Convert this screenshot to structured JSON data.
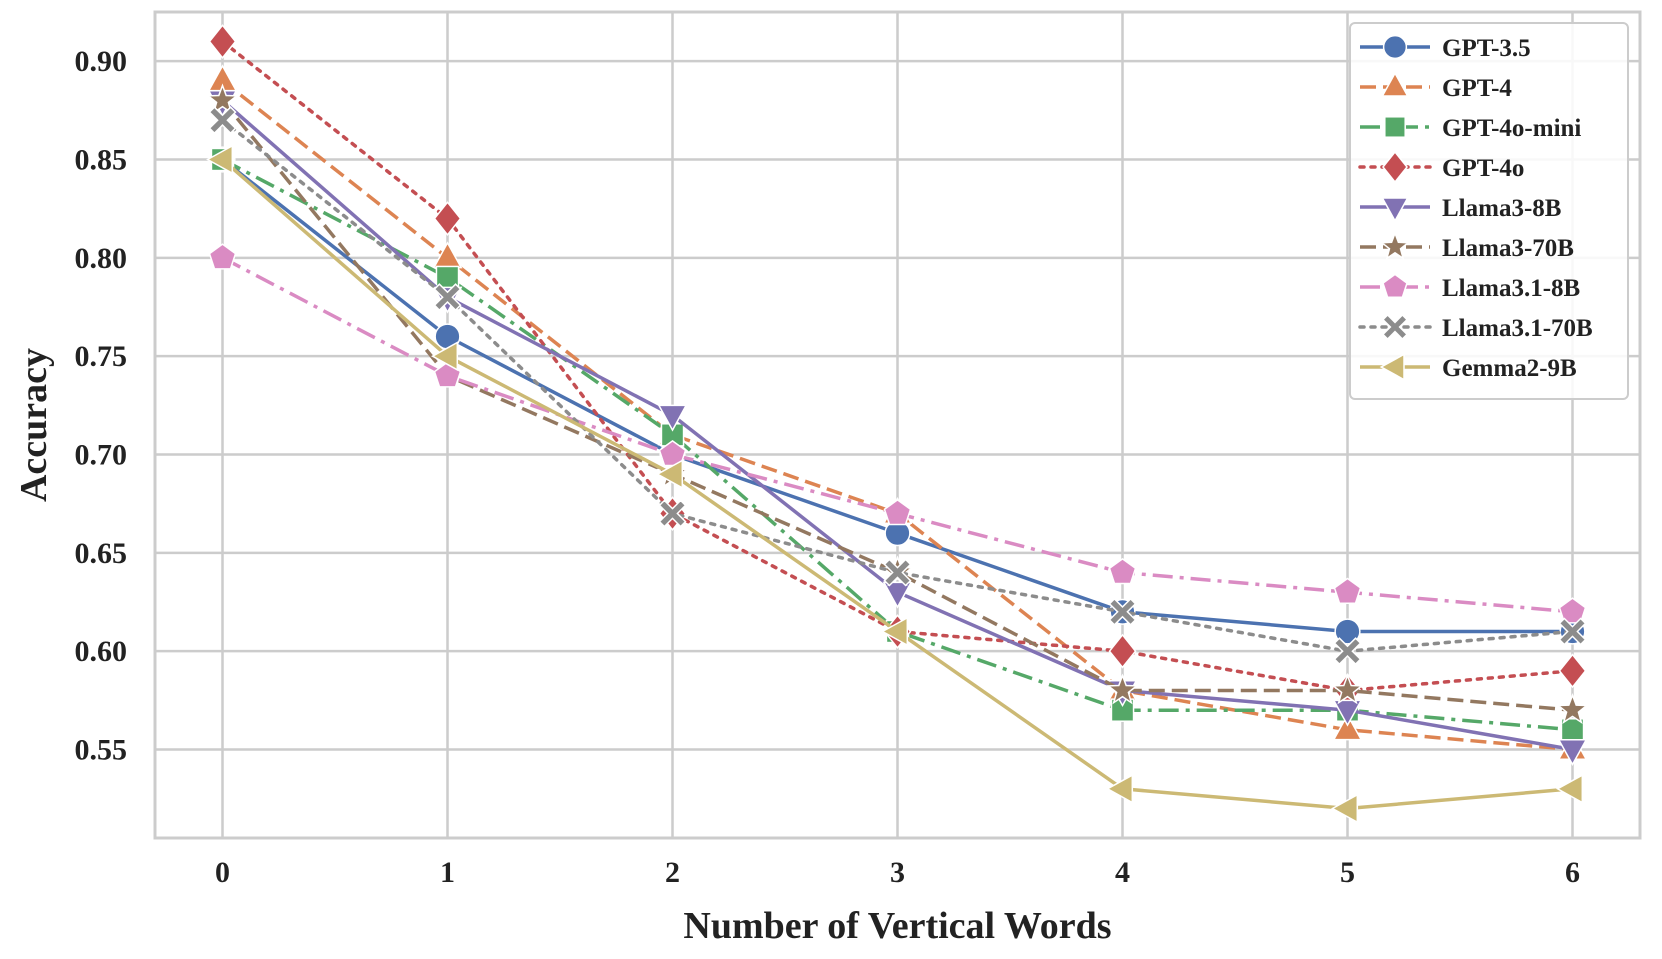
{
  "chart_data": {
    "type": "line",
    "xlabel": "Number of Vertical Words",
    "ylabel": "Accuracy",
    "x": [
      0,
      1,
      2,
      3,
      4,
      5,
      6
    ],
    "x_tick_labels": [
      "0",
      "1",
      "2",
      "3",
      "4",
      "5",
      "6"
    ],
    "xlim": [
      -0.3,
      6.3
    ],
    "y_ticks": [
      0.55,
      0.6,
      0.65,
      0.7,
      0.75,
      0.8,
      0.85,
      0.9
    ],
    "y_tick_labels": [
      "0.55",
      "0.60",
      "0.65",
      "0.70",
      "0.75",
      "0.80",
      "0.85",
      "0.90"
    ],
    "ylim": [
      0.505,
      0.925
    ],
    "grid": true,
    "legend_position": "top-right",
    "series": [
      {
        "name": "GPT-3.5",
        "color": "#4c72b0",
        "linestyle": "solid",
        "marker": "circle",
        "values": [
          0.85,
          0.76,
          0.7,
          0.66,
          0.62,
          0.61,
          0.61
        ]
      },
      {
        "name": "GPT-4",
        "color": "#dd8452",
        "linestyle": "dashed",
        "marker": "triangle-up",
        "values": [
          0.89,
          0.8,
          0.71,
          0.67,
          0.58,
          0.56,
          0.55
        ]
      },
      {
        "name": "GPT-4o-mini",
        "color": "#55a868",
        "linestyle": "dashdot",
        "marker": "square",
        "values": [
          0.85,
          0.79,
          0.71,
          0.61,
          0.57,
          0.57,
          0.56
        ]
      },
      {
        "name": "GPT-4o",
        "color": "#c44e52",
        "linestyle": "dotted",
        "marker": "diamond",
        "values": [
          0.91,
          0.82,
          0.67,
          0.61,
          0.6,
          0.58,
          0.59
        ]
      },
      {
        "name": "Llama3-8B",
        "color": "#8172b3",
        "linestyle": "solid",
        "marker": "triangle-down",
        "values": [
          0.88,
          0.78,
          0.72,
          0.63,
          0.58,
          0.57,
          0.55
        ]
      },
      {
        "name": "Llama3-70B",
        "color": "#937860",
        "linestyle": "dashed",
        "marker": "star",
        "values": [
          0.88,
          0.74,
          0.69,
          0.64,
          0.58,
          0.58,
          0.57
        ]
      },
      {
        "name": "Llama3.1-8B",
        "color": "#da8bc3",
        "linestyle": "dashdot",
        "marker": "pentagon",
        "values": [
          0.8,
          0.74,
          0.7,
          0.67,
          0.64,
          0.63,
          0.62
        ]
      },
      {
        "name": "Llama3.1-70B",
        "color": "#8c8c8c",
        "linestyle": "dotted",
        "marker": "x-filled",
        "values": [
          0.87,
          0.78,
          0.67,
          0.64,
          0.62,
          0.6,
          0.61
        ]
      },
      {
        "name": "Gemma2-9B",
        "color": "#ccb974",
        "linestyle": "solid",
        "marker": "triangle-left",
        "values": [
          0.85,
          0.75,
          0.69,
          0.61,
          0.53,
          0.52,
          0.53
        ]
      }
    ]
  }
}
